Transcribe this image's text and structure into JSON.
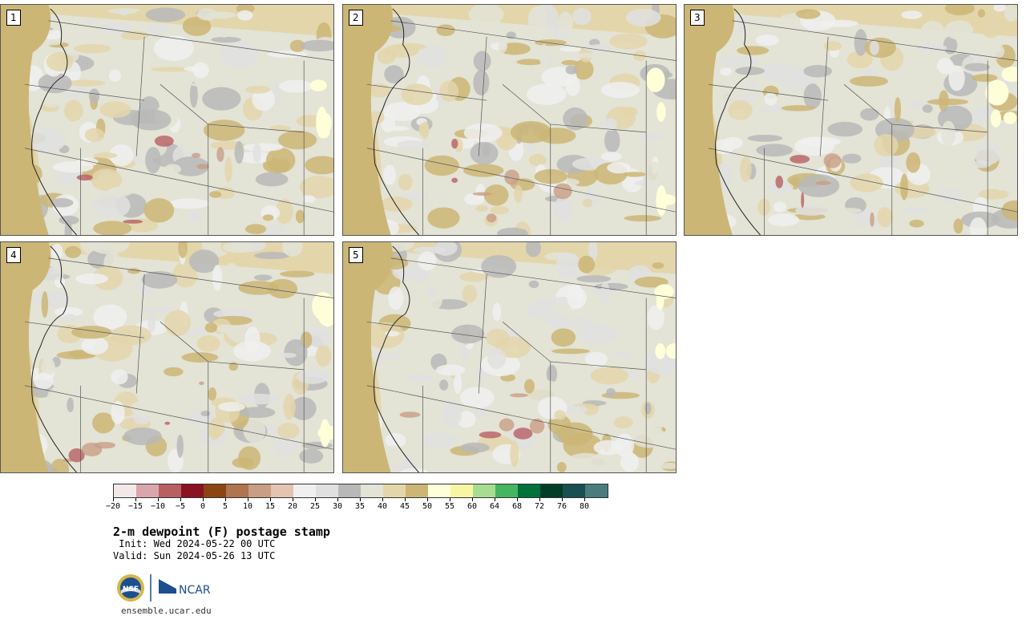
{
  "members": [
    {
      "label": "1"
    },
    {
      "label": "2"
    },
    {
      "label": "3"
    },
    {
      "label": "4"
    },
    {
      "label": "5"
    }
  ],
  "colorbar": {
    "colors": [
      "#f3e8e8",
      "#d9a7ab",
      "#b85f64",
      "#8b1220",
      "#8b4412",
      "#ad7550",
      "#c89e84",
      "#e2c4b0",
      "#f0f0f0",
      "#e0e0e0",
      "#b8b8b8",
      "#e3e3d6",
      "#e3d6ab",
      "#ccb676",
      "#fefed8",
      "#f8f6a4",
      "#a6dd90",
      "#46b562",
      "#00713b",
      "#003d26",
      "#174f52",
      "#4a7b7d"
    ],
    "tick_labels": [
      "−20",
      "−15",
      "−10",
      "−5",
      "0",
      "5",
      "10",
      "15",
      "20",
      "25",
      "30",
      "35",
      "40",
      "45",
      "50",
      "55",
      "60",
      "64",
      "68",
      "72",
      "76",
      "80"
    ]
  },
  "title": "2-m dewpoint (F) postage stamp",
  "init": " Init: Wed 2024-05-22 00 UTC",
  "valid": "Valid: Sun 2024-05-26 13 UTC",
  "logos": {
    "nsf_text": "NSF",
    "ncar_text": "NCAR"
  },
  "site": "ensemble.ucar.edu"
}
